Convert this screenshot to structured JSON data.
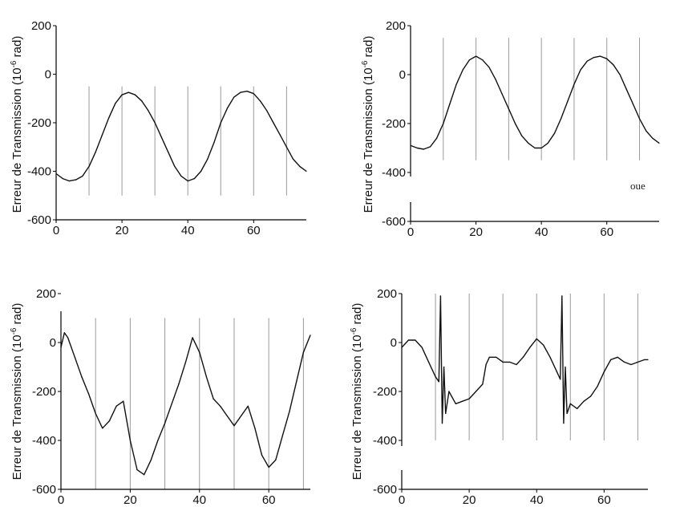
{
  "figure": {
    "ylabel_parts": [
      "Erreur de Transmission (10",
      "-6",
      " rad)"
    ],
    "artifact_text": "oue"
  },
  "chart_data": [
    {
      "type": "line",
      "title": "",
      "xlabel": "",
      "ylabel": "Erreur de Transmission (10-6 rad)",
      "xlim": [
        0,
        76
      ],
      "ylim": [
        -600,
        200
      ],
      "xticks": [
        0,
        20,
        40,
        60
      ],
      "yticks": [
        -600,
        -400,
        -200,
        0,
        200
      ],
      "vlines": [
        10,
        20,
        30,
        40,
        50,
        60,
        70
      ],
      "vline_range": [
        -500,
        -50
      ],
      "grid": false,
      "series": [
        {
          "x": [
            0,
            2,
            4,
            6,
            8,
            10,
            12,
            14,
            16,
            18,
            20,
            22,
            24,
            26,
            28,
            30,
            32,
            34,
            36,
            38,
            40,
            42,
            44,
            46,
            48,
            50,
            52,
            54,
            56,
            58,
            60,
            62,
            64,
            66,
            68,
            70,
            72,
            74,
            76
          ],
          "y": [
            -410,
            -430,
            -440,
            -435,
            -420,
            -380,
            -320,
            -250,
            -180,
            -120,
            -85,
            -75,
            -85,
            -110,
            -150,
            -200,
            -260,
            -320,
            -380,
            -420,
            -440,
            -430,
            -400,
            -350,
            -280,
            -200,
            -140,
            -95,
            -75,
            -70,
            -80,
            -110,
            -150,
            -200,
            -250,
            -300,
            -350,
            -380,
            -400
          ]
        }
      ]
    },
    {
      "type": "line",
      "title": "",
      "xlabel": "",
      "ylabel": "Erreur de Transmission (10-6 rad)",
      "xlim": [
        0,
        76
      ],
      "ylim": [
        -600,
        200
      ],
      "xticks": [
        0,
        20,
        40,
        60
      ],
      "yticks": [
        -600,
        -400,
        -200,
        0,
        200
      ],
      "vlines": [
        10,
        20,
        30,
        40,
        50,
        60,
        70
      ],
      "vline_range": [
        -350,
        150
      ],
      "grid": false,
      "series": [
        {
          "x": [
            0,
            2,
            4,
            6,
            8,
            10,
            12,
            14,
            16,
            18,
            20,
            22,
            24,
            26,
            28,
            30,
            32,
            34,
            36,
            38,
            40,
            42,
            44,
            46,
            48,
            50,
            52,
            54,
            56,
            58,
            60,
            62,
            64,
            66,
            68,
            70,
            72,
            74,
            76
          ],
          "y": [
            -290,
            -300,
            -305,
            -295,
            -260,
            -200,
            -120,
            -40,
            20,
            60,
            75,
            60,
            30,
            -20,
            -80,
            -140,
            -200,
            -250,
            -280,
            -300,
            -300,
            -280,
            -240,
            -180,
            -110,
            -40,
            20,
            55,
            70,
            75,
            65,
            40,
            0,
            -60,
            -120,
            -180,
            -230,
            -260,
            -280
          ]
        }
      ]
    },
    {
      "type": "line",
      "title": "",
      "xlabel": "",
      "ylabel": "Erreur de Transmission (10-6 rad)",
      "xlim": [
        0,
        72
      ],
      "ylim": [
        -600,
        200
      ],
      "xticks": [
        0,
        20,
        40,
        60
      ],
      "yticks": [
        -600,
        -400,
        -200,
        0,
        200
      ],
      "vlines": [
        10,
        20,
        30,
        40,
        50,
        60,
        70
      ],
      "vline_range": [
        -600,
        100
      ],
      "grid": false,
      "series": [
        {
          "x": [
            0,
            1,
            2,
            4,
            6,
            8,
            10,
            12,
            14,
            16,
            18,
            20,
            22,
            24,
            26,
            28,
            30,
            32,
            34,
            36,
            38,
            40,
            42,
            44,
            46,
            48,
            50,
            52,
            54,
            56,
            58,
            60,
            62,
            64,
            66,
            68,
            70,
            72
          ],
          "y": [
            -20,
            40,
            20,
            -60,
            -140,
            -210,
            -290,
            -350,
            -320,
            -260,
            -240,
            -400,
            -520,
            -540,
            -480,
            -400,
            -330,
            -250,
            -170,
            -80,
            20,
            -40,
            -140,
            -230,
            -260,
            -300,
            -340,
            -300,
            -260,
            -350,
            -460,
            -510,
            -480,
            -380,
            -280,
            -160,
            -40,
            30
          ]
        }
      ]
    },
    {
      "type": "line",
      "title": "",
      "xlabel": "",
      "ylabel": "Erreur de Transmission (10-6 rad)",
      "xlim": [
        0,
        73
      ],
      "ylim": [
        -600,
        200
      ],
      "xticks": [
        0,
        20,
        40,
        60
      ],
      "yticks": [
        -600,
        -400,
        -200,
        0,
        200
      ],
      "vlines": [
        10,
        20,
        30,
        40,
        50,
        60,
        70
      ],
      "vline_range": [
        -400,
        200
      ],
      "grid": false,
      "series": [
        {
          "x": [
            0,
            2,
            4,
            6,
            8,
            10,
            11,
            11.5,
            12,
            12.5,
            13,
            14,
            16,
            18,
            20,
            22,
            24,
            25,
            26,
            28,
            30,
            32,
            34,
            36,
            38,
            40,
            42,
            44,
            46,
            47,
            47.5,
            48,
            48.5,
            49,
            50,
            52,
            54,
            56,
            58,
            60,
            62,
            64,
            66,
            68,
            70,
            72,
            73
          ],
          "y": [
            -20,
            10,
            10,
            -20,
            -80,
            -140,
            -160,
            190,
            -330,
            -100,
            -290,
            -200,
            -250,
            -240,
            -230,
            -200,
            -170,
            -90,
            -60,
            -60,
            -80,
            -80,
            -90,
            -60,
            -20,
            15,
            -10,
            -60,
            -120,
            -150,
            190,
            -330,
            -100,
            -290,
            -250,
            -270,
            -240,
            -220,
            -180,
            -120,
            -70,
            -60,
            -80,
            -90,
            -80,
            -70,
            -70
          ]
        }
      ]
    }
  ]
}
